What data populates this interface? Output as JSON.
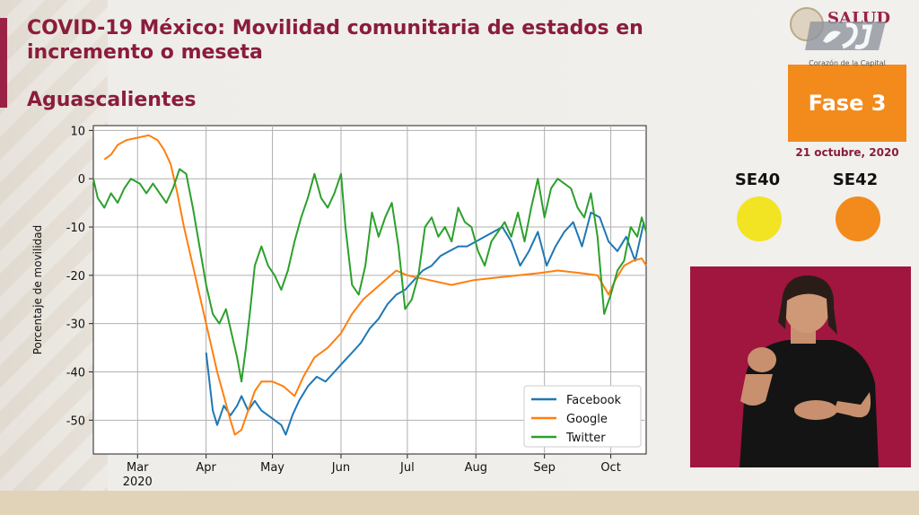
{
  "header": {
    "title": "COVID-19 México: Movilidad comunitaria de estados en incremento o meseta",
    "state": "Aguascalientes"
  },
  "branding": {
    "logo_text": "SALUD",
    "overlay_caption": "Corazón de la Capital"
  },
  "status": {
    "phase_label": "Fase 3",
    "date": "21 octubre, 2020",
    "phase_color": "#f28a1c",
    "weeks": [
      {
        "label": "SE40",
        "color": "#f2e422"
      },
      {
        "label": "SE42",
        "color": "#f28a1c"
      }
    ]
  },
  "colors": {
    "brand": "#9b2247",
    "facebook": "#1f77b4",
    "google": "#ff7f0e",
    "twitter": "#2ca02c"
  },
  "chart_data": {
    "type": "line",
    "title": "",
    "xlabel": "",
    "ylabel": "Porcentaje de movilidad",
    "x_range": [
      "2020-02-10",
      "2020-10-17"
    ],
    "ylim": [
      -57,
      11
    ],
    "yticks": [
      10,
      0,
      -10,
      -20,
      -30,
      -40,
      -50
    ],
    "xticks": [
      {
        "date": "2020-03-01",
        "label": "Mar",
        "sublabel": "2020"
      },
      {
        "date": "2020-04-01",
        "label": "Apr",
        "sublabel": ""
      },
      {
        "date": "2020-05-01",
        "label": "May",
        "sublabel": ""
      },
      {
        "date": "2020-06-01",
        "label": "Jun",
        "sublabel": ""
      },
      {
        "date": "2020-07-01",
        "label": "Jul",
        "sublabel": ""
      },
      {
        "date": "2020-08-01",
        "label": "Aug",
        "sublabel": ""
      },
      {
        "date": "2020-09-01",
        "label": "Sep",
        "sublabel": ""
      },
      {
        "date": "2020-10-01",
        "label": "Oct",
        "sublabel": ""
      }
    ],
    "grid": true,
    "legend_position": "bottom-right",
    "series": [
      {
        "name": "Facebook",
        "color": "#1f77b4",
        "points": [
          [
            "2020-04-01",
            -36
          ],
          [
            "2020-04-04",
            -48
          ],
          [
            "2020-04-06",
            -51
          ],
          [
            "2020-04-09",
            -47
          ],
          [
            "2020-04-12",
            -49
          ],
          [
            "2020-04-15",
            -47
          ],
          [
            "2020-04-17",
            -45
          ],
          [
            "2020-04-20",
            -48
          ],
          [
            "2020-04-23",
            -46
          ],
          [
            "2020-04-26",
            -48
          ],
          [
            "2020-04-29",
            -49
          ],
          [
            "2020-05-02",
            -50
          ],
          [
            "2020-05-05",
            -51
          ],
          [
            "2020-05-07",
            -53
          ],
          [
            "2020-05-10",
            -49
          ],
          [
            "2020-05-13",
            -46
          ],
          [
            "2020-05-17",
            -43
          ],
          [
            "2020-05-21",
            -41
          ],
          [
            "2020-05-25",
            -42
          ],
          [
            "2020-05-29",
            -40
          ],
          [
            "2020-06-02",
            -38
          ],
          [
            "2020-06-06",
            -36
          ],
          [
            "2020-06-10",
            -34
          ],
          [
            "2020-06-14",
            -31
          ],
          [
            "2020-06-18",
            -29
          ],
          [
            "2020-06-22",
            -26
          ],
          [
            "2020-06-26",
            -24
          ],
          [
            "2020-06-30",
            -23
          ],
          [
            "2020-07-04",
            -21
          ],
          [
            "2020-07-08",
            -19
          ],
          [
            "2020-07-12",
            -18
          ],
          [
            "2020-07-16",
            -16
          ],
          [
            "2020-07-20",
            -15
          ],
          [
            "2020-07-24",
            -14
          ],
          [
            "2020-07-28",
            -14
          ],
          [
            "2020-08-01",
            -13
          ],
          [
            "2020-08-05",
            -12
          ],
          [
            "2020-08-09",
            -11
          ],
          [
            "2020-08-13",
            -10
          ],
          [
            "2020-08-17",
            -13
          ],
          [
            "2020-08-21",
            -18
          ],
          [
            "2020-08-25",
            -15
          ],
          [
            "2020-08-29",
            -11
          ],
          [
            "2020-09-02",
            -18
          ],
          [
            "2020-09-06",
            -14
          ],
          [
            "2020-09-10",
            -11
          ],
          [
            "2020-09-14",
            -9
          ],
          [
            "2020-09-18",
            -14
          ],
          [
            "2020-09-22",
            -7
          ],
          [
            "2020-09-26",
            -8
          ],
          [
            "2020-09-30",
            -13
          ],
          [
            "2020-10-04",
            -15
          ],
          [
            "2020-10-08",
            -12
          ],
          [
            "2020-10-12",
            -17
          ],
          [
            "2020-10-16",
            -9
          ]
        ]
      },
      {
        "name": "Google",
        "color": "#ff7f0e",
        "points": [
          [
            "2020-02-15",
            4
          ],
          [
            "2020-02-18",
            5
          ],
          [
            "2020-02-21",
            7
          ],
          [
            "2020-02-25",
            8
          ],
          [
            "2020-03-01",
            8.5
          ],
          [
            "2020-03-06",
            9
          ],
          [
            "2020-03-10",
            8
          ],
          [
            "2020-03-13",
            6
          ],
          [
            "2020-03-16",
            3
          ],
          [
            "2020-03-19",
            -3
          ],
          [
            "2020-03-22",
            -10
          ],
          [
            "2020-03-25",
            -16
          ],
          [
            "2020-03-28",
            -22
          ],
          [
            "2020-03-31",
            -28
          ],
          [
            "2020-04-03",
            -34
          ],
          [
            "2020-04-06",
            -40
          ],
          [
            "2020-04-09",
            -45
          ],
          [
            "2020-04-12",
            -50
          ],
          [
            "2020-04-14",
            -53
          ],
          [
            "2020-04-17",
            -52
          ],
          [
            "2020-04-20",
            -48
          ],
          [
            "2020-04-23",
            -44
          ],
          [
            "2020-04-26",
            -42
          ],
          [
            "2020-05-01",
            -42
          ],
          [
            "2020-05-06",
            -43
          ],
          [
            "2020-05-11",
            -45
          ],
          [
            "2020-05-15",
            -41
          ],
          [
            "2020-05-20",
            -37
          ],
          [
            "2020-05-26",
            -35
          ],
          [
            "2020-06-01",
            -32
          ],
          [
            "2020-06-06",
            -28
          ],
          [
            "2020-06-11",
            -25
          ],
          [
            "2020-06-16",
            -23
          ],
          [
            "2020-06-21",
            -21
          ],
          [
            "2020-06-26",
            -19
          ],
          [
            "2020-07-01",
            -20
          ],
          [
            "2020-07-11",
            -21
          ],
          [
            "2020-07-21",
            -22
          ],
          [
            "2020-07-31",
            -21
          ],
          [
            "2020-08-10",
            -20.5
          ],
          [
            "2020-08-20",
            -20
          ],
          [
            "2020-08-30",
            -19.5
          ],
          [
            "2020-09-07",
            -19
          ],
          [
            "2020-09-17",
            -19.5
          ],
          [
            "2020-09-25",
            -20
          ],
          [
            "2020-09-30",
            -24
          ],
          [
            "2020-10-03",
            -21
          ],
          [
            "2020-10-07",
            -18
          ],
          [
            "2020-10-11",
            -17
          ],
          [
            "2020-10-15",
            -16.5
          ],
          [
            "2020-10-17",
            -18
          ]
        ]
      },
      {
        "name": "Twitter",
        "color": "#2ca02c",
        "points": [
          [
            "2020-02-10",
            0
          ],
          [
            "2020-02-12",
            -4
          ],
          [
            "2020-02-15",
            -6
          ],
          [
            "2020-02-18",
            -3
          ],
          [
            "2020-02-21",
            -5
          ],
          [
            "2020-02-24",
            -2
          ],
          [
            "2020-02-27",
            0
          ],
          [
            "2020-03-02",
            -1
          ],
          [
            "2020-03-05",
            -3
          ],
          [
            "2020-03-08",
            -1
          ],
          [
            "2020-03-11",
            -3
          ],
          [
            "2020-03-14",
            -5
          ],
          [
            "2020-03-17",
            -2
          ],
          [
            "2020-03-20",
            2
          ],
          [
            "2020-03-23",
            1
          ],
          [
            "2020-03-26",
            -6
          ],
          [
            "2020-03-29",
            -14
          ],
          [
            "2020-04-01",
            -22
          ],
          [
            "2020-04-04",
            -28
          ],
          [
            "2020-04-07",
            -30
          ],
          [
            "2020-04-10",
            -27
          ],
          [
            "2020-04-13",
            -33
          ],
          [
            "2020-04-15",
            -37
          ],
          [
            "2020-04-17",
            -42
          ],
          [
            "2020-04-19",
            -35
          ],
          [
            "2020-04-21",
            -27
          ],
          [
            "2020-04-23",
            -18
          ],
          [
            "2020-04-26",
            -14
          ],
          [
            "2020-04-29",
            -18
          ],
          [
            "2020-05-02",
            -20
          ],
          [
            "2020-05-05",
            -23
          ],
          [
            "2020-05-08",
            -19
          ],
          [
            "2020-05-11",
            -13
          ],
          [
            "2020-05-14",
            -8
          ],
          [
            "2020-05-17",
            -4
          ],
          [
            "2020-05-20",
            1
          ],
          [
            "2020-05-23",
            -4
          ],
          [
            "2020-05-26",
            -6
          ],
          [
            "2020-05-29",
            -3
          ],
          [
            "2020-06-01",
            1
          ],
          [
            "2020-06-03",
            -10
          ],
          [
            "2020-06-06",
            -22
          ],
          [
            "2020-06-09",
            -24
          ],
          [
            "2020-06-12",
            -18
          ],
          [
            "2020-06-15",
            -7
          ],
          [
            "2020-06-18",
            -12
          ],
          [
            "2020-06-21",
            -8
          ],
          [
            "2020-06-24",
            -5
          ],
          [
            "2020-06-27",
            -14
          ],
          [
            "2020-06-30",
            -27
          ],
          [
            "2020-07-03",
            -25
          ],
          [
            "2020-07-06",
            -20
          ],
          [
            "2020-07-09",
            -10
          ],
          [
            "2020-07-12",
            -8
          ],
          [
            "2020-07-15",
            -12
          ],
          [
            "2020-07-18",
            -10
          ],
          [
            "2020-07-21",
            -13
          ],
          [
            "2020-07-24",
            -6
          ],
          [
            "2020-07-27",
            -9
          ],
          [
            "2020-07-30",
            -10
          ],
          [
            "2020-08-02",
            -15
          ],
          [
            "2020-08-05",
            -18
          ],
          [
            "2020-08-08",
            -13
          ],
          [
            "2020-08-11",
            -11
          ],
          [
            "2020-08-14",
            -9
          ],
          [
            "2020-08-17",
            -12
          ],
          [
            "2020-08-20",
            -7
          ],
          [
            "2020-08-23",
            -13
          ],
          [
            "2020-08-26",
            -6
          ],
          [
            "2020-08-29",
            0
          ],
          [
            "2020-09-01",
            -8
          ],
          [
            "2020-09-04",
            -2
          ],
          [
            "2020-09-07",
            0
          ],
          [
            "2020-09-10",
            -1
          ],
          [
            "2020-09-13",
            -2
          ],
          [
            "2020-09-16",
            -6
          ],
          [
            "2020-09-19",
            -8
          ],
          [
            "2020-09-22",
            -3
          ],
          [
            "2020-09-25",
            -12
          ],
          [
            "2020-09-28",
            -28
          ],
          [
            "2020-10-01",
            -24
          ],
          [
            "2020-10-04",
            -19
          ],
          [
            "2020-10-07",
            -17
          ],
          [
            "2020-10-10",
            -10
          ],
          [
            "2020-10-13",
            -12
          ],
          [
            "2020-10-15",
            -8
          ],
          [
            "2020-10-17",
            -11
          ]
        ]
      }
    ]
  }
}
